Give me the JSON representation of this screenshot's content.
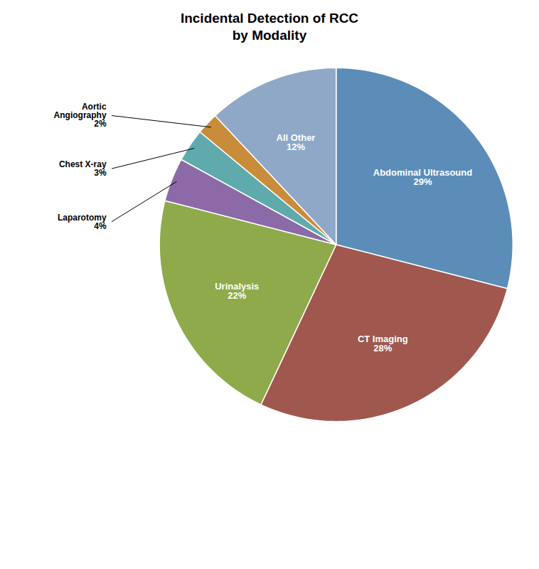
{
  "chart_data": {
    "type": "pie",
    "title": "Incidental Detection of RCC\nby Modality",
    "categories": [
      "Abdominal Ultrasound\n29%",
      "CT Imaging\n28%",
      "Urinalysis\n22%",
      "Laparotomy\n4%",
      "Chest X-ray\n3%",
      "Aortic\nAngiography\n2%",
      "All Other\n12%"
    ],
    "values": [
      29,
      28,
      22,
      4,
      3,
      2,
      12
    ],
    "colors": [
      "#5b8db8",
      "#a0584e",
      "#8faa4a",
      "#8b6aa7",
      "#5faaad",
      "#c88c3a",
      "#8fa8c8"
    ]
  }
}
